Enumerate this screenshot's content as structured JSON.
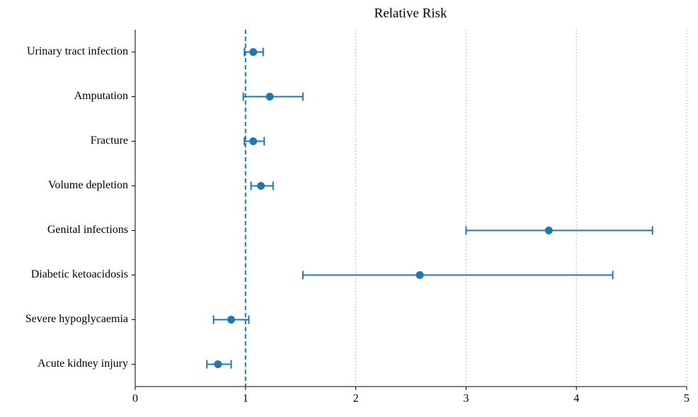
{
  "chart_data": {
    "type": "forest",
    "title": "Relative Risk",
    "categories": [
      "Urinary tract infection",
      "Amputation",
      "Fracture",
      "Volume depletion",
      "Genital infections",
      "Diabetic ketoacidosis",
      "Severe hypoglycaemia",
      "Acute kidney injury"
    ],
    "values": [
      1.07,
      1.22,
      1.07,
      1.14,
      3.75,
      2.58,
      0.87,
      0.75
    ],
    "ci_low": [
      0.99,
      0.98,
      0.99,
      1.05,
      3.0,
      1.52,
      0.71,
      0.65
    ],
    "ci_high": [
      1.16,
      1.52,
      1.17,
      1.25,
      4.69,
      4.33,
      1.03,
      0.87
    ],
    "color": "#1f77b4",
    "reference_line": 1,
    "xlim": [
      0,
      5
    ],
    "xticks": [
      0,
      1,
      2,
      3,
      4,
      5
    ],
    "grid": true
  }
}
